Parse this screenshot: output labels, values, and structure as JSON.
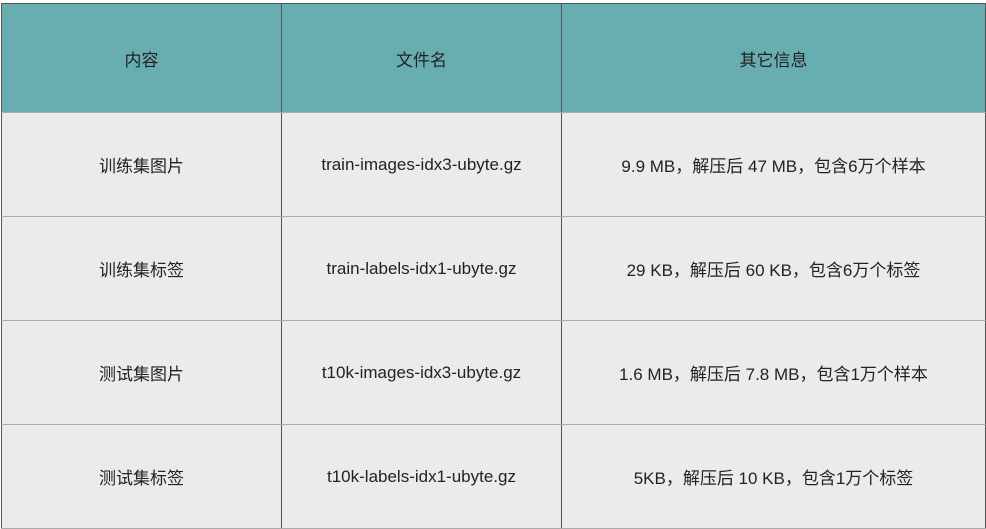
{
  "table": {
    "header_color": "#68aeb1",
    "row_color": "#ebebeb",
    "headers": [
      "内容",
      "文件名",
      "其它信息"
    ],
    "rows": [
      [
        "训练集图片",
        "train-images-idx3-ubyte.gz",
        "9.9 MB，解压后 47 MB，包含6万个样本"
      ],
      [
        "训练集标签",
        "train-labels-idx1-ubyte.gz",
        "29 KB，解压后 60 KB，包含6万个标签"
      ],
      [
        "测试集图片",
        "t10k-images-idx3-ubyte.gz",
        "1.6 MB，解压后 7.8 MB，包含1万个样本"
      ],
      [
        "测试集标签",
        "t10k-labels-idx1-ubyte.gz",
        "5KB，解压后 10 KB，包含1万个标签"
      ]
    ]
  }
}
